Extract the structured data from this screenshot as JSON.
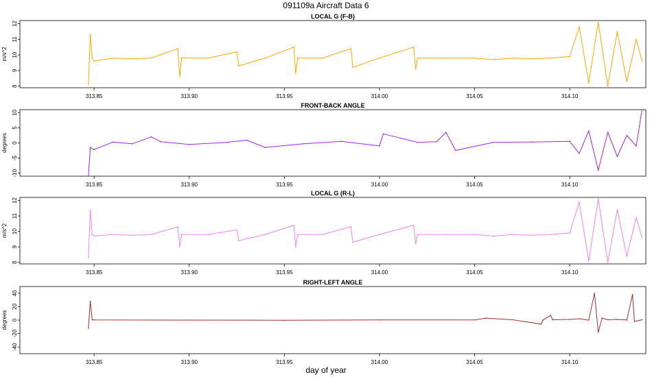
{
  "title": "091109a   Aircraft Data 6",
  "xlabel": "day of year",
  "chart_data": [
    {
      "type": "line",
      "title": "LOCAL G (F-B)",
      "ylabel": "m/s^2",
      "color": "#FFA500",
      "xlim": [
        313.811,
        314.14
      ],
      "ylim": [
        7.9,
        12.2
      ],
      "xticks": [
        "313.85",
        "313.90",
        "313.95",
        "314.00",
        "314.05",
        "314.10"
      ],
      "yticks": [
        "8",
        "9",
        "10",
        "11",
        "12"
      ],
      "x": [
        313.847,
        313.848,
        313.849,
        313.85,
        313.86,
        313.87,
        313.88,
        313.894,
        313.895,
        313.896,
        313.91,
        313.925,
        313.926,
        313.94,
        313.955,
        313.956,
        313.957,
        313.97,
        313.985,
        313.986,
        314.0,
        314.018,
        314.019,
        314.02,
        314.035,
        314.05,
        314.06,
        314.07,
        314.08,
        314.09,
        314.1,
        314.105,
        314.11,
        314.115,
        314.12,
        314.125,
        314.13,
        314.135,
        314.138
      ],
      "y": [
        8.1,
        11.3,
        9.8,
        9.6,
        9.8,
        9.75,
        9.8,
        10.4,
        8.6,
        9.8,
        9.8,
        10.2,
        9.3,
        9.8,
        10.5,
        8.8,
        9.8,
        9.8,
        10.4,
        9.2,
        9.8,
        10.5,
        9.1,
        9.8,
        9.8,
        9.8,
        9.7,
        9.8,
        9.75,
        9.8,
        9.9,
        11.8,
        8.2,
        12.1,
        8.0,
        11.5,
        8.3,
        11.0,
        9.6
      ]
    },
    {
      "type": "line",
      "title": "FRONT-BACK ANGLE",
      "ylabel": "degrees",
      "color": "#A020F0",
      "xlim": [
        313.811,
        314.14
      ],
      "ylim": [
        -11,
        11
      ],
      "xticks": [
        "313.85",
        "313.90",
        "313.95",
        "314.00",
        "314.05",
        "314.10"
      ],
      "yticks": [
        "-10",
        "-5",
        "0",
        "5",
        "10"
      ],
      "x": [
        313.847,
        313.848,
        313.85,
        313.86,
        313.87,
        313.88,
        313.885,
        313.9,
        313.92,
        313.93,
        313.94,
        313.96,
        313.98,
        314.0,
        314.002,
        314.02,
        314.03,
        314.035,
        314.04,
        314.06,
        314.08,
        314.1,
        314.105,
        314.11,
        314.115,
        314.12,
        314.125,
        314.13,
        314.135,
        314.138
      ],
      "y": [
        -11,
        -1.5,
        -2.2,
        0.3,
        -0.3,
        2.0,
        0.4,
        -0.5,
        0.2,
        0.9,
        -1.5,
        -0.3,
        0.5,
        -1.0,
        3.0,
        0.2,
        0.4,
        3.5,
        -2.5,
        0.2,
        0.3,
        0.5,
        -3.5,
        4.0,
        -9.0,
        3.5,
        -4.5,
        2.5,
        -1.0,
        11.0
      ]
    },
    {
      "type": "line",
      "title": "LOCAL G (R-L)",
      "ylabel": "m/s^2",
      "color": "#EE82EE",
      "xlim": [
        313.811,
        314.14
      ],
      "ylim": [
        7.9,
        12.2
      ],
      "xticks": [
        "313.85",
        "313.90",
        "313.95",
        "314.00",
        "314.05",
        "314.10"
      ],
      "yticks": [
        "8",
        "9",
        "10",
        "11",
        "12"
      ],
      "x": [
        313.847,
        313.848,
        313.849,
        313.85,
        313.86,
        313.87,
        313.88,
        313.894,
        313.895,
        313.896,
        313.91,
        313.925,
        313.926,
        313.94,
        313.955,
        313.956,
        313.957,
        313.97,
        313.985,
        313.986,
        314.0,
        314.018,
        314.019,
        314.02,
        314.035,
        314.05,
        314.06,
        314.07,
        314.08,
        314.09,
        314.1,
        314.105,
        314.11,
        314.115,
        314.12,
        314.125,
        314.13,
        314.135,
        314.138
      ],
      "y": [
        8.3,
        11.4,
        9.8,
        9.7,
        9.8,
        9.75,
        9.8,
        10.3,
        9.0,
        9.8,
        9.8,
        10.1,
        9.4,
        9.8,
        10.4,
        9.0,
        9.8,
        9.8,
        10.3,
        9.3,
        9.8,
        10.4,
        9.2,
        9.8,
        9.8,
        9.8,
        9.7,
        9.8,
        9.75,
        9.8,
        9.9,
        11.9,
        8.1,
        12.1,
        8.0,
        11.4,
        8.4,
        10.9,
        9.6
      ]
    },
    {
      "type": "line",
      "title": "RIGHT-LEFT ANGLE",
      "ylabel": "degrees",
      "color": "#A52A2A",
      "xlim": [
        313.811,
        314.14
      ],
      "ylim": [
        -50,
        50
      ],
      "xticks": [
        "313.85",
        "313.90",
        "313.95",
        "314.00",
        "314.05",
        "314.10"
      ],
      "yticks": [
        "-40",
        "-20",
        "0",
        "20",
        "40"
      ],
      "x": [
        313.847,
        313.848,
        313.849,
        313.85,
        313.9,
        313.95,
        314.0,
        314.05,
        314.056,
        314.07,
        314.085,
        314.086,
        314.09,
        314.091,
        314.1,
        314.105,
        314.11,
        314.113,
        314.115,
        314.117,
        314.12,
        314.125,
        314.13,
        314.133,
        314.134,
        314.138
      ],
      "y": [
        -12,
        28,
        0.5,
        0.3,
        0,
        -0.2,
        0.2,
        0.3,
        3,
        0.5,
        -6,
        0.3,
        7,
        0.5,
        1,
        2,
        0,
        40,
        -18,
        3,
        0.5,
        1,
        0.2,
        38,
        -2,
        0.5
      ]
    }
  ]
}
